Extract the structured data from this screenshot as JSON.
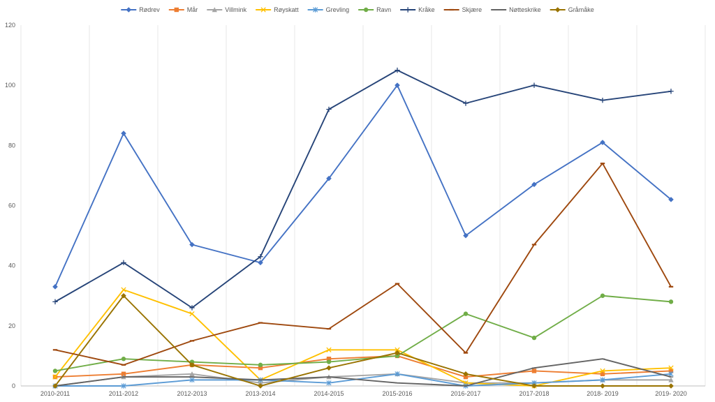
{
  "chart_data": {
    "type": "line",
    "categories": [
      "2010-2011",
      "2011-2012",
      "2012-2013",
      "2013-2014",
      "2014-2015",
      "2015-2016",
      "2016-2017",
      "2017-2018",
      "2018- 2019",
      "2019- 2020"
    ],
    "ylim": [
      0,
      120
    ],
    "yticks": [
      0,
      20,
      40,
      60,
      80,
      100,
      120
    ],
    "grid": "vertical",
    "legend_position": "top",
    "series": [
      {
        "name": "Rødrev",
        "color": "#4472C4",
        "marker": "diamond",
        "values": [
          33,
          84,
          47,
          41,
          69,
          100,
          50,
          67,
          81,
          62
        ]
      },
      {
        "name": "Mår",
        "color": "#ED7D31",
        "marker": "square",
        "values": [
          3,
          4,
          7,
          6,
          9,
          10,
          3,
          5,
          4,
          5
        ]
      },
      {
        "name": "Villmink",
        "color": "#A5A5A5",
        "marker": "triangle",
        "values": [
          0,
          3,
          4,
          1,
          3,
          4,
          1,
          1,
          2,
          2
        ]
      },
      {
        "name": "Røyskatt",
        "color": "#FFC000",
        "marker": "x",
        "values": [
          3,
          32,
          24,
          2,
          12,
          12,
          1,
          0,
          5,
          6
        ]
      },
      {
        "name": "Grevling",
        "color": "#5B9BD5",
        "marker": "star",
        "values": [
          0,
          0,
          2,
          2,
          1,
          4,
          0,
          1,
          2,
          4
        ]
      },
      {
        "name": "Ravn",
        "color": "#70AD47",
        "marker": "circle",
        "values": [
          5,
          9,
          8,
          7,
          8,
          10,
          24,
          16,
          30,
          28
        ]
      },
      {
        "name": "Kråke",
        "color": "#264478",
        "marker": "plus",
        "values": [
          28,
          41,
          26,
          43,
          92,
          105,
          94,
          100,
          95,
          98
        ]
      },
      {
        "name": "Skjære",
        "color": "#9E480E",
        "marker": "dash",
        "values": [
          12,
          7,
          15,
          21,
          19,
          34,
          11,
          47,
          74,
          33
        ]
      },
      {
        "name": "Nøtteskrike",
        "color": "#636363",
        "marker": "line",
        "values": [
          0,
          3,
          3,
          2,
          3,
          1,
          0,
          6,
          9,
          3
        ]
      },
      {
        "name": "Gråmåke",
        "color": "#997300",
        "marker": "diamond",
        "values": [
          0,
          30,
          7,
          0,
          6,
          11,
          4,
          0,
          0,
          0
        ]
      }
    ]
  }
}
